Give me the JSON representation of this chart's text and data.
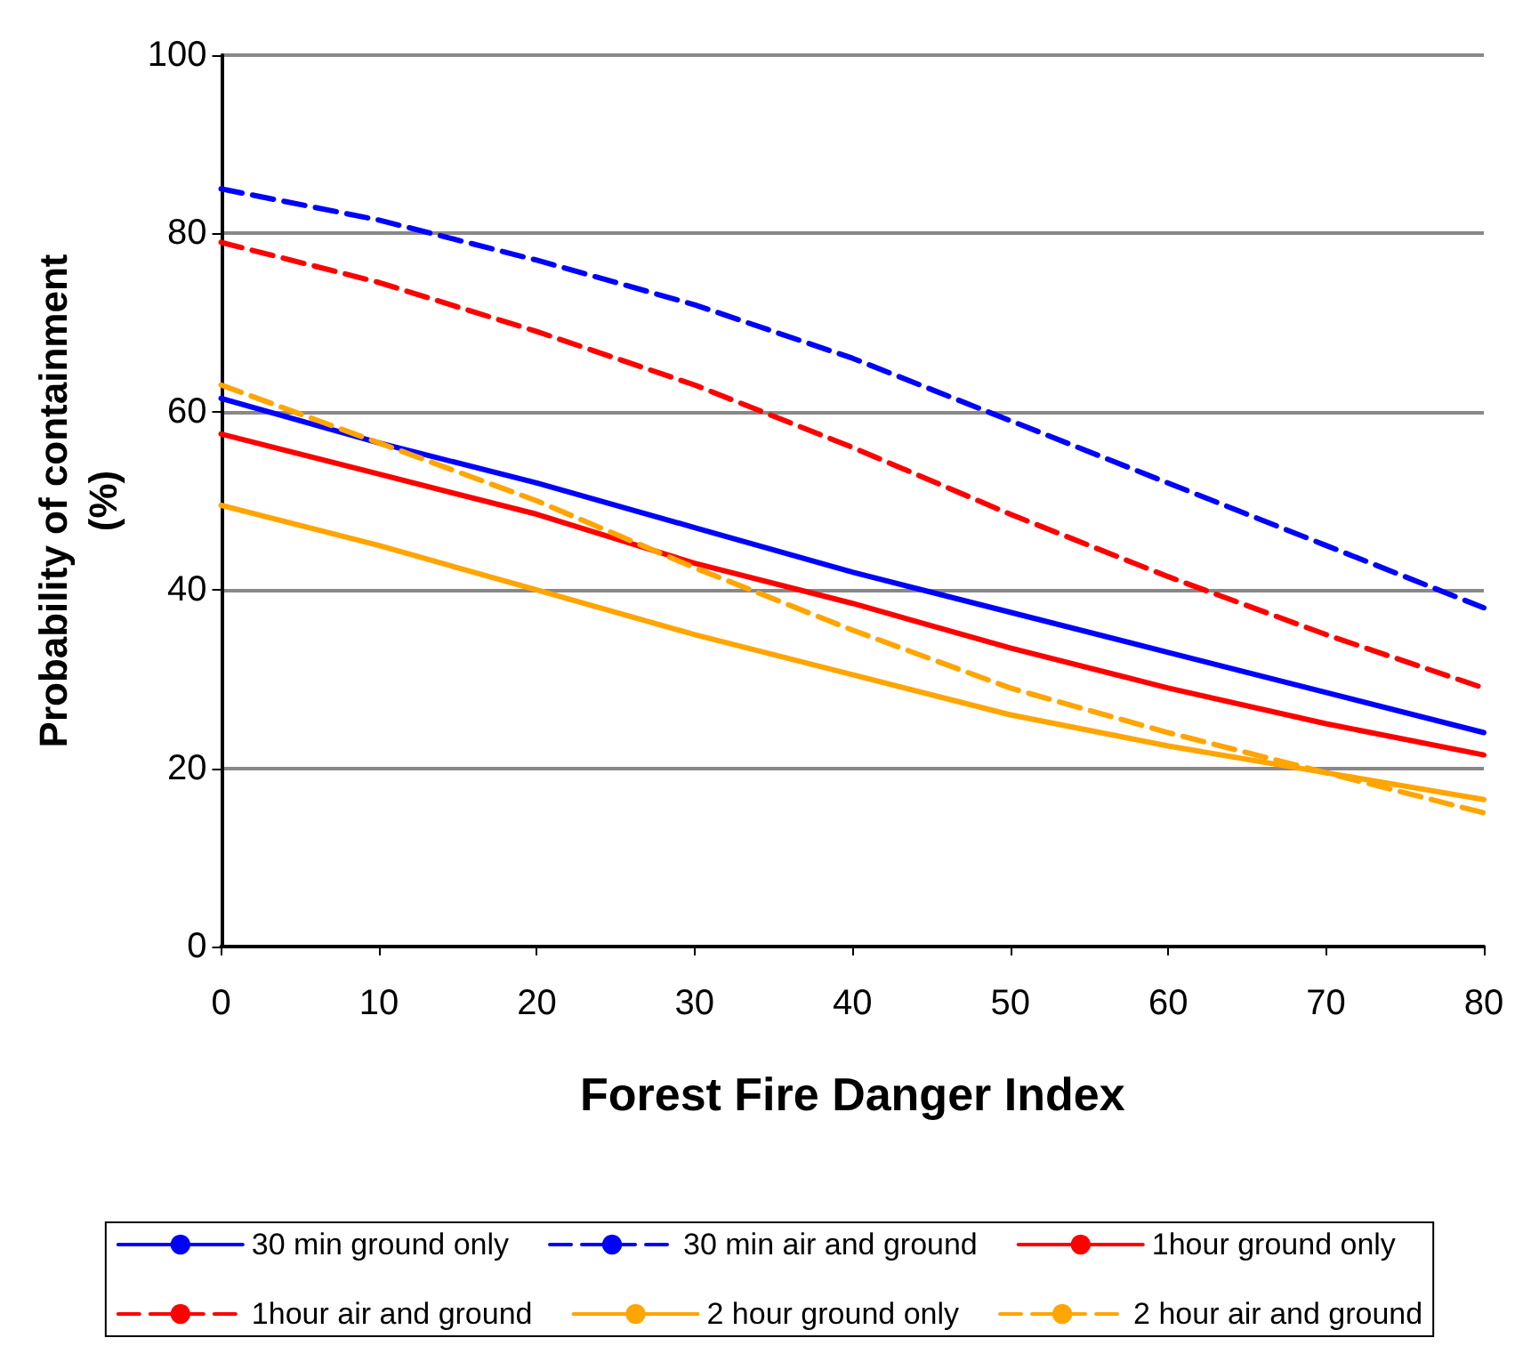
{
  "chart_data": {
    "type": "line",
    "xlabel": "Forest Fire Danger Index",
    "ylabel": "Probability of containment\n(%)",
    "x": [
      0,
      10,
      20,
      30,
      40,
      50,
      60,
      70,
      80
    ],
    "xlim": [
      0,
      80
    ],
    "xticks": [
      0,
      10,
      20,
      30,
      40,
      50,
      60,
      70,
      80
    ],
    "ylim": [
      0,
      100
    ],
    "yticks": [
      0,
      20,
      40,
      60,
      80,
      100
    ],
    "grid": "y",
    "legend": "bottom",
    "marker": "none",
    "series": [
      {
        "name": "30 min ground only",
        "color": "#0000ff",
        "line_style": "solid",
        "values": [
          61.5,
          56.5,
          52,
          47,
          42,
          37.5,
          33,
          28.5,
          24
        ]
      },
      {
        "name": "30 min air and ground",
        "color": "#0000ff",
        "line_style": "dashed",
        "values": [
          85,
          81.5,
          77,
          72,
          66,
          59,
          52,
          45,
          38
        ]
      },
      {
        "name": "1hour ground only",
        "color": "#ff0000",
        "line_style": "solid",
        "values": [
          57.5,
          53,
          48.5,
          43,
          38.5,
          33.5,
          29,
          25,
          21.5
        ]
      },
      {
        "name": "1hour air and ground",
        "color": "#ff0000",
        "line_style": "dashed",
        "values": [
          79,
          74.5,
          69,
          63,
          56,
          48.5,
          41.5,
          35,
          29
        ]
      },
      {
        "name": "2 hour ground only",
        "color": "#ffa500",
        "line_style": "solid",
        "values": [
          49.5,
          45,
          40,
          35,
          30.5,
          26,
          22.5,
          19.5,
          16.5
        ]
      },
      {
        "name": "2 hour air and ground",
        "color": "#ffa500",
        "line_style": "dashed",
        "values": [
          63,
          56.5,
          50,
          42.5,
          35.5,
          29,
          24,
          19.5,
          15
        ]
      }
    ]
  }
}
